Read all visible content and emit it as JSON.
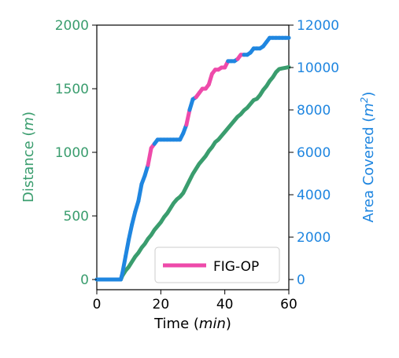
{
  "chart_data": {
    "type": "line",
    "xlabel": {
      "prefix": "Time (",
      "unit": "min",
      "suffix": ")"
    },
    "ylabel_left": {
      "prefix": "Distance (",
      "unit": "m",
      "suffix": ")"
    },
    "ylabel_right": {
      "prefix": "Area Covered (",
      "unit": "m",
      "sup": "2",
      "suffix": ")"
    },
    "xlim": [
      0,
      60
    ],
    "ylim_left": [
      -80,
      2000
    ],
    "ylim_right": [
      -480,
      12000
    ],
    "x_ticks": [
      "0",
      "20",
      "40",
      "60"
    ],
    "y_left_ticks": [
      "0",
      "500",
      "1000",
      "1500",
      "2000"
    ],
    "y_right_ticks": [
      "0",
      "2000",
      "4000",
      "6000",
      "8000",
      "10000",
      "12000"
    ],
    "legend": {
      "label": "FIG-OP",
      "position": "lower-right"
    },
    "colors": {
      "distance": "#3a9d6e",
      "area_pink": "#ee4aaa",
      "area_blue": "#1f86e0",
      "left_axis": "#3a9d6e",
      "right_axis": "#1f86e0"
    },
    "series": [
      {
        "axis": "left",
        "color": "#3a9d6e",
        "x": [
          0,
          7.5,
          8,
          9,
          10,
          11,
          12,
          13,
          14,
          15,
          16,
          17,
          18,
          19,
          20,
          21,
          22,
          23,
          24,
          25,
          26,
          27,
          28,
          29,
          30,
          31,
          32,
          33,
          34,
          35,
          36,
          37,
          38,
          39,
          40,
          41,
          42,
          43,
          44,
          45,
          46,
          47,
          48,
          49,
          50,
          51,
          52,
          53,
          54,
          55,
          56,
          57,
          58,
          59,
          60
        ],
        "y": [
          0,
          0,
          30,
          70,
          100,
          140,
          180,
          210,
          250,
          280,
          320,
          350,
          390,
          420,
          450,
          490,
          520,
          560,
          600,
          630,
          650,
          680,
          730,
          780,
          830,
          870,
          910,
          940,
          970,
          1010,
          1040,
          1080,
          1100,
          1130,
          1160,
          1190,
          1220,
          1250,
          1280,
          1300,
          1330,
          1350,
          1380,
          1410,
          1420,
          1450,
          1490,
          1520,
          1560,
          1590,
          1630,
          1655,
          1660,
          1665,
          1670
        ]
      },
      {
        "axis": "right",
        "x": [
          0,
          7.5,
          8,
          9,
          10,
          11,
          12,
          13,
          14,
          15,
          16,
          17,
          18,
          19,
          20,
          21,
          22,
          23,
          24,
          25,
          26,
          27,
          28,
          29,
          30,
          31,
          32,
          33,
          34,
          35,
          36,
          37,
          38,
          39,
          40,
          41,
          42,
          43,
          44,
          45,
          46,
          47,
          48,
          49,
          50,
          51,
          52,
          53,
          54,
          55,
          56,
          57,
          58,
          59,
          60
        ],
        "y": [
          0,
          0,
          300,
          1100,
          1900,
          2600,
          3200,
          3700,
          4500,
          4900,
          5400,
          6200,
          6400,
          6600,
          6600,
          6600,
          6600,
          6600,
          6600,
          6600,
          6600,
          6900,
          7300,
          8000,
          8500,
          8600,
          8800,
          9000,
          9000,
          9200,
          9700,
          9900,
          9900,
          10000,
          10000,
          10300,
          10300,
          10300,
          10400,
          10600,
          10600,
          10600,
          10700,
          10900,
          10900,
          10900,
          11000,
          11200,
          11400,
          11400,
          11400,
          11400,
          11400,
          11400,
          11400
        ],
        "colors": [
          "#1f86e0",
          "#1f86e0",
          "#1f86e0",
          "#1f86e0",
          "#1f86e0",
          "#1f86e0",
          "#1f86e0",
          "#1f86e0",
          "#1f86e0",
          "#1f86e0",
          "#ee4aaa",
          "#ee4aaa",
          "#1f86e0",
          "#1f86e0",
          "#1f86e0",
          "#1f86e0",
          "#1f86e0",
          "#1f86e0",
          "#1f86e0",
          "#1f86e0",
          "#1f86e0",
          "#1f86e0",
          "#ee4aaa",
          "#1f86e0",
          "#1f86e0",
          "#ee4aaa",
          "#ee4aaa",
          "#ee4aaa",
          "#ee4aaa",
          "#ee4aaa",
          "#ee4aaa",
          "#ee4aaa",
          "#ee4aaa",
          "#ee4aaa",
          "#ee4aaa",
          "#1f86e0",
          "#1f86e0",
          "#1f86e0",
          "#ee4aaa",
          "#ee4aaa",
          "#1f86e0",
          "#1f86e0",
          "#1f86e0",
          "#1f86e0",
          "#1f86e0",
          "#1f86e0",
          "#1f86e0",
          "#1f86e0",
          "#1f86e0",
          "#1f86e0",
          "#1f86e0",
          "#1f86e0",
          "#1f86e0",
          "#1f86e0"
        ]
      }
    ]
  }
}
